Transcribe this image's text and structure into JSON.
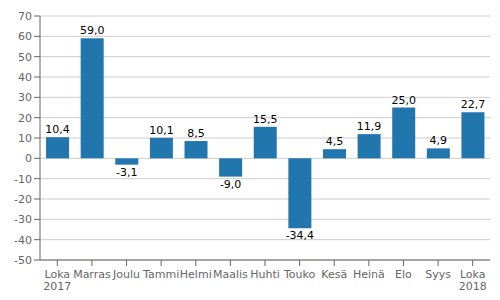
{
  "chart_data": {
    "type": "bar",
    "categories": [
      "Loka\n2017",
      "Marras",
      "Joulu",
      "Tammi",
      "Helmi",
      "Maalis",
      "Huhti",
      "Touko",
      "Kesä",
      "Heinä",
      "Elo",
      "Syys",
      "Loka\n2018"
    ],
    "values": [
      10.4,
      59.0,
      -3.1,
      10.1,
      8.5,
      -9.0,
      15.5,
      -34.4,
      4.5,
      11.9,
      25.0,
      4.9,
      22.7
    ],
    "value_labels": [
      "10,4",
      "59,0",
      "-3,1",
      "10,1",
      "8,5",
      "-9,0",
      "15,5",
      "-34,4",
      "4,5",
      "11,9",
      "25,0",
      "4,9",
      "22,7"
    ],
    "color": "#2176ae",
    "ylim": [
      -50,
      70
    ],
    "yticks": [
      -50,
      -40,
      -30,
      -20,
      -10,
      0,
      10,
      20,
      30,
      40,
      50,
      60,
      70
    ],
    "grid": true,
    "data_labels": true
  }
}
